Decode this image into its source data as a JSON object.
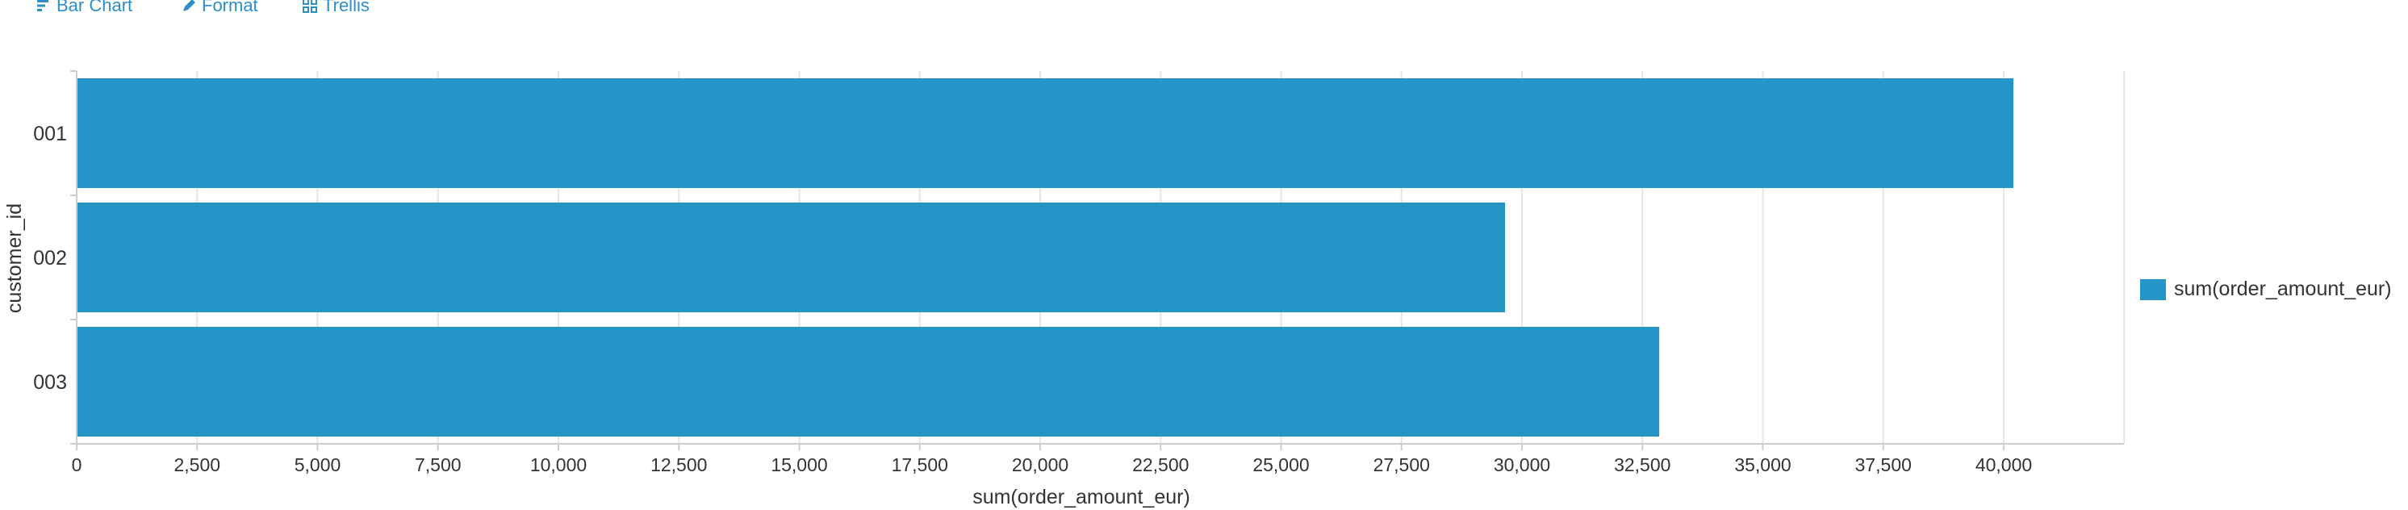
{
  "toolbar": {
    "items": [
      {
        "label": "Bar Chart",
        "icon": "bar-chart-icon"
      },
      {
        "label": "Format",
        "icon": "pencil-icon"
      },
      {
        "label": "Trellis",
        "icon": "grid-icon"
      }
    ]
  },
  "colors": {
    "bar": "#2594c6",
    "grid": "#e6e6e6",
    "axis": "#cccccc",
    "accent": "#2c8fc5"
  },
  "chart_data": {
    "type": "bar",
    "orientation": "horizontal",
    "categories": [
      "001",
      "002",
      "003"
    ],
    "series": [
      {
        "name": "sum(order_amount_eur)",
        "values": [
          40200,
          29650,
          32850
        ]
      }
    ],
    "xlabel": "sum(order_amount_eur)",
    "ylabel": "customer_id",
    "xlim": [
      0,
      42500
    ],
    "xticks": [
      0,
      2500,
      5000,
      7500,
      10000,
      12500,
      15000,
      17500,
      20000,
      22500,
      25000,
      27500,
      30000,
      32500,
      35000,
      37500,
      40000
    ],
    "xtick_labels": [
      "0",
      "2,500",
      "5,000",
      "7,500",
      "10,000",
      "12,500",
      "15,000",
      "17,500",
      "20,000",
      "22,500",
      "25,000",
      "27,500",
      "30,000",
      "32,500",
      "35,000",
      "37,500",
      "40,000"
    ],
    "grid": true,
    "legend": "right"
  }
}
